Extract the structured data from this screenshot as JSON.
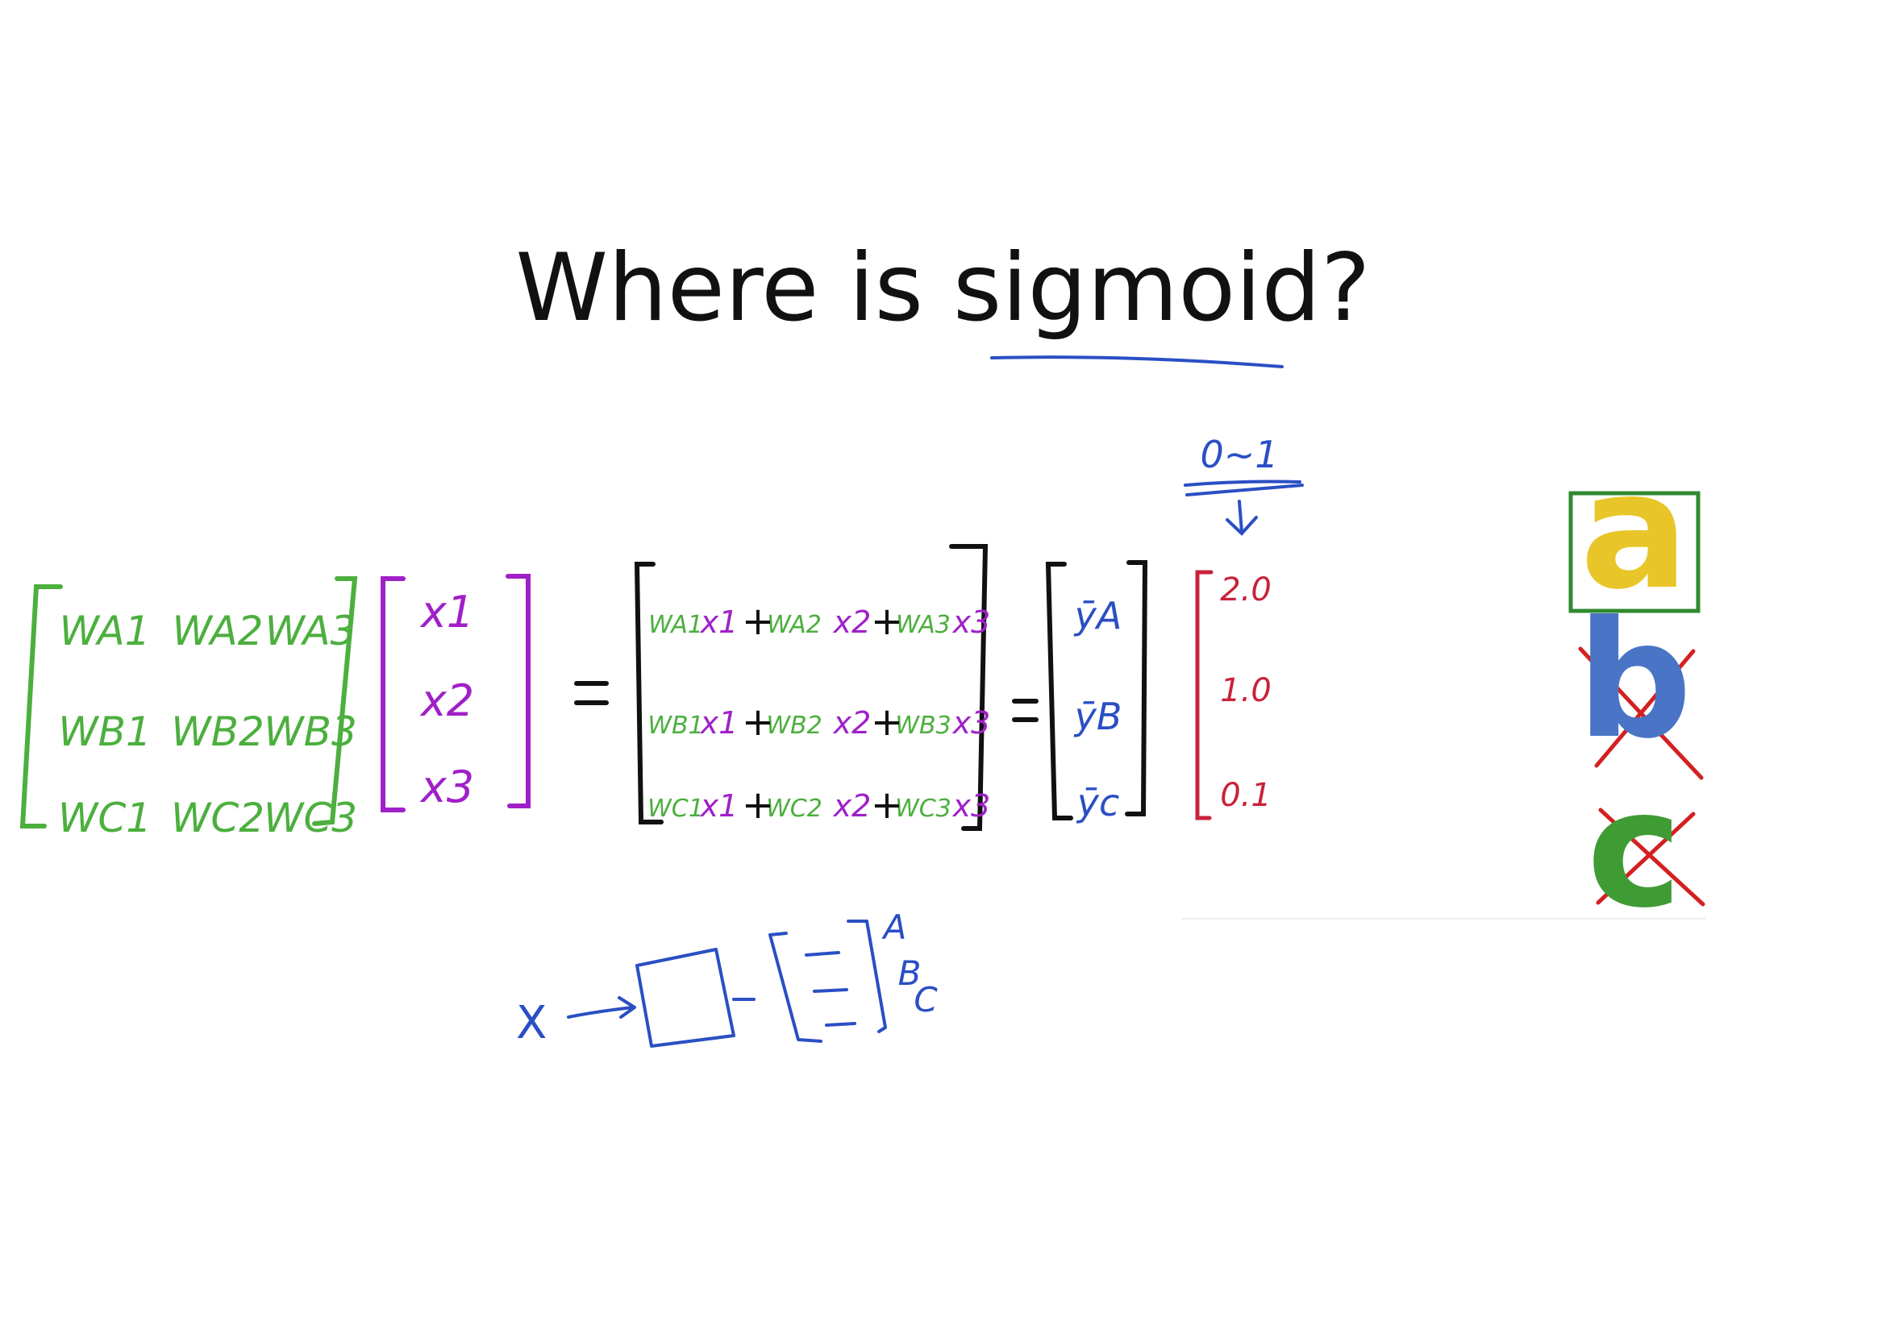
{
  "title": "Where is sigmoid?",
  "colors": {
    "weights": "#4caf3e",
    "inputs": "#a020c8",
    "outputs": "#2a4fc4",
    "scores": "#c8223a",
    "ink": "#111111",
    "pen_blue": "#2a4fc4",
    "letter_a": "#e8c62a",
    "letter_b": "#4a74c6",
    "letter_c": "#3f9b34",
    "cross": "#d32020",
    "box": "#2f8a2f"
  },
  "weight_matrix": [
    [
      "WA1",
      "WA2",
      "WA3"
    ],
    [
      "WB1",
      "WB2",
      "WB3"
    ],
    [
      "WC1",
      "WC2",
      "WC3"
    ]
  ],
  "input_vector": [
    "x1",
    "x2",
    "x3"
  ],
  "product_rows": [
    [
      "WA1",
      "x1",
      "WA2",
      "x2",
      "WA3",
      "x3"
    ],
    [
      "WB1",
      "x1",
      "WB2",
      "x2",
      "WB3",
      "x3"
    ],
    [
      "WC1",
      "x1",
      "WC2",
      "x2",
      "WC3",
      "x3"
    ]
  ],
  "output_vector": [
    "ȳA",
    "ȳB",
    "ȳc"
  ],
  "scores": [
    "2.0",
    "1.0",
    "0.1"
  ],
  "range_note": "0~1",
  "letters": [
    "a",
    "b",
    "c"
  ],
  "sketch": {
    "input": "X",
    "labels": [
      "A",
      "B",
      "C"
    ]
  }
}
